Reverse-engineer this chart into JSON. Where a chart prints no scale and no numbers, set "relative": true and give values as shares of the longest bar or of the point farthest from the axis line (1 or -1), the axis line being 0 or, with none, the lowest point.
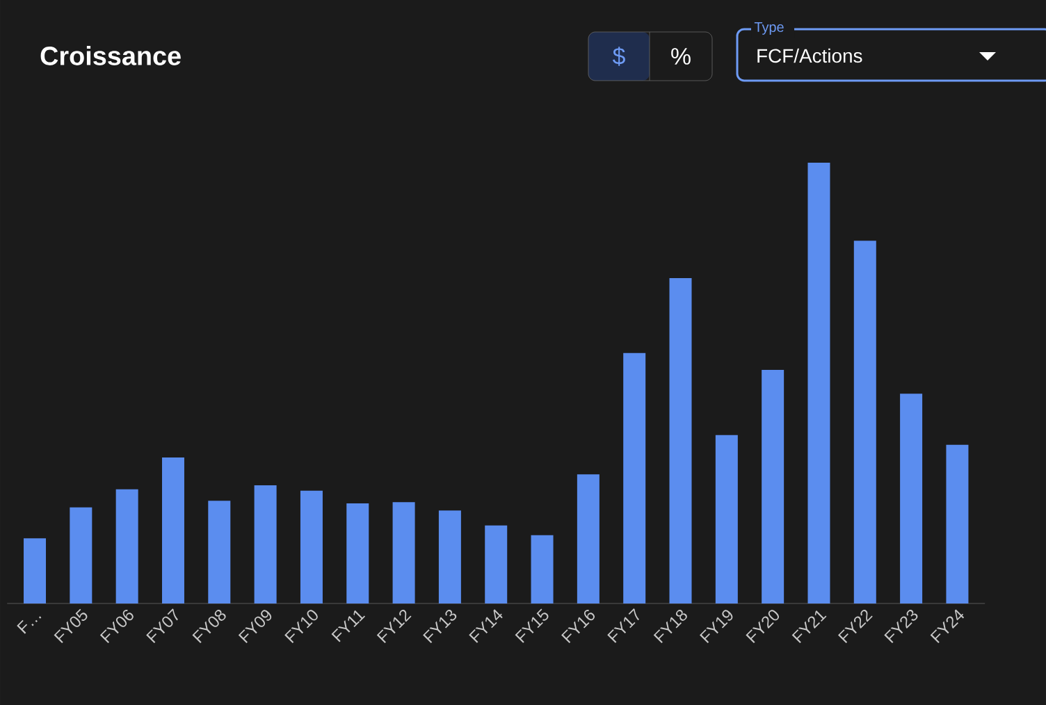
{
  "chart_data": {
    "type": "bar",
    "title": "Croissance",
    "relative": true,
    "color": "#5b8def",
    "categories": [
      "F…",
      "FY05",
      "FY06",
      "FY07",
      "FY08",
      "FY09",
      "FY10",
      "FY11",
      "FY12",
      "FY13",
      "FY14",
      "FY15",
      "FY16",
      "FY17",
      "FY18",
      "FY19",
      "FY20",
      "FY21",
      "FY22",
      "FY23",
      "FY24"
    ],
    "values": [
      0.148,
      0.218,
      0.259,
      0.331,
      0.233,
      0.268,
      0.256,
      0.227,
      0.23,
      0.211,
      0.177,
      0.155,
      0.293,
      0.568,
      0.738,
      0.382,
      0.53,
      1,
      0.823,
      0.476,
      0.36
    ],
    "annotations": [
      "$",
      "%",
      "Type",
      "FCF/Actions"
    ]
  }
}
